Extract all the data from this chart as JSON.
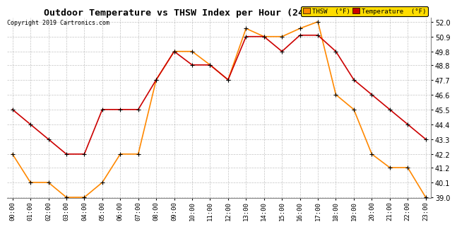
{
  "title": "Outdoor Temperature vs THSW Index per Hour (24 Hours) 20191016",
  "copyright": "Copyright 2019 Cartronics.com",
  "hours": [
    "00:00",
    "01:00",
    "02:00",
    "03:00",
    "04:00",
    "05:00",
    "06:00",
    "07:00",
    "08:00",
    "09:00",
    "10:00",
    "11:00",
    "12:00",
    "13:00",
    "14:00",
    "15:00",
    "16:00",
    "17:00",
    "18:00",
    "19:00",
    "20:00",
    "21:00",
    "22:00",
    "23:00"
  ],
  "temperature": [
    45.5,
    44.4,
    43.3,
    42.2,
    42.2,
    45.5,
    45.5,
    45.5,
    47.7,
    49.8,
    48.8,
    48.8,
    47.7,
    50.9,
    50.9,
    49.8,
    51.0,
    51.0,
    49.8,
    47.7,
    46.6,
    45.5,
    44.4,
    43.3
  ],
  "thsw": [
    42.2,
    40.1,
    40.1,
    39.0,
    39.0,
    40.1,
    42.2,
    42.2,
    47.7,
    49.8,
    49.8,
    48.8,
    47.7,
    51.5,
    50.9,
    50.9,
    51.5,
    52.0,
    46.6,
    45.5,
    42.2,
    41.2,
    41.2,
    39.0
  ],
  "temp_color": "#cc0000",
  "thsw_color": "#ff8800",
  "ylim_min": 39.0,
  "ylim_max": 52.0,
  "yticks": [
    39.0,
    40.1,
    41.2,
    42.2,
    43.3,
    44.4,
    45.5,
    46.6,
    47.7,
    48.8,
    49.8,
    50.9,
    52.0
  ],
  "background_color": "#ffffff",
  "grid_color": "#aaaaaa",
  "legend_thsw_label": "THSW  (°F)",
  "legend_temp_label": "Temperature  (°F)"
}
